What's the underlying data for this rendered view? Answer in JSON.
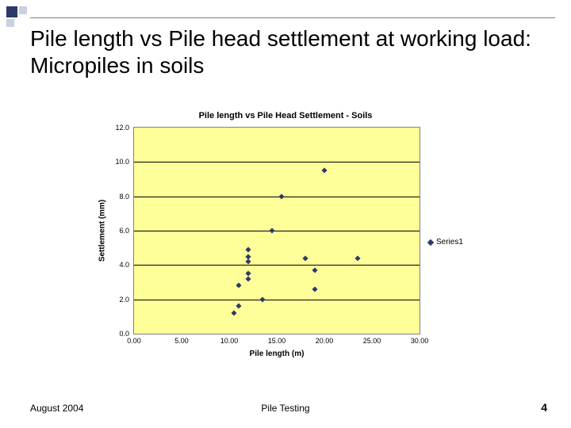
{
  "slide": {
    "title": "Pile length vs Pile head settlement at working load: Micropiles in soils",
    "footer_date": "August 2004",
    "footer_center": "Pile Testing",
    "page_number": "4"
  },
  "chart": {
    "type": "scatter",
    "title": "Pile length vs Pile Head Settlement - Soils",
    "xlabel": "Pile length (m)",
    "ylabel": "Settlement (mm)",
    "xlim": [
      0,
      30
    ],
    "ylim": [
      0,
      12
    ],
    "xtick_step": 5,
    "ytick_step": 2,
    "xtick_labels": [
      "0.00",
      "5.00",
      "10.00",
      "15.00",
      "20.00",
      "25.00",
      "30.00"
    ],
    "ytick_labels": [
      "0.0",
      "2.0",
      "4.0",
      "6.0",
      "8.0",
      "10.0",
      "12.0"
    ],
    "background_color": "#ffff99",
    "grid_color": "#000000",
    "marker_color": "#2a3a6a",
    "marker_style": "diamond",
    "marker_size": 5,
    "legend_label": "Series1",
    "series": [
      {
        "x": 10.5,
        "y": 1.2
      },
      {
        "x": 11.0,
        "y": 1.6
      },
      {
        "x": 13.5,
        "y": 2.0
      },
      {
        "x": 11.0,
        "y": 2.8
      },
      {
        "x": 19.0,
        "y": 2.6
      },
      {
        "x": 12.0,
        "y": 3.2
      },
      {
        "x": 12.0,
        "y": 3.5
      },
      {
        "x": 19.0,
        "y": 3.7
      },
      {
        "x": 12.0,
        "y": 4.2
      },
      {
        "x": 12.0,
        "y": 4.5
      },
      {
        "x": 12.0,
        "y": 4.9
      },
      {
        "x": 18.0,
        "y": 4.4
      },
      {
        "x": 23.5,
        "y": 4.4
      },
      {
        "x": 14.5,
        "y": 6.0
      },
      {
        "x": 15.5,
        "y": 8.0
      },
      {
        "x": 20.0,
        "y": 9.5
      }
    ]
  }
}
